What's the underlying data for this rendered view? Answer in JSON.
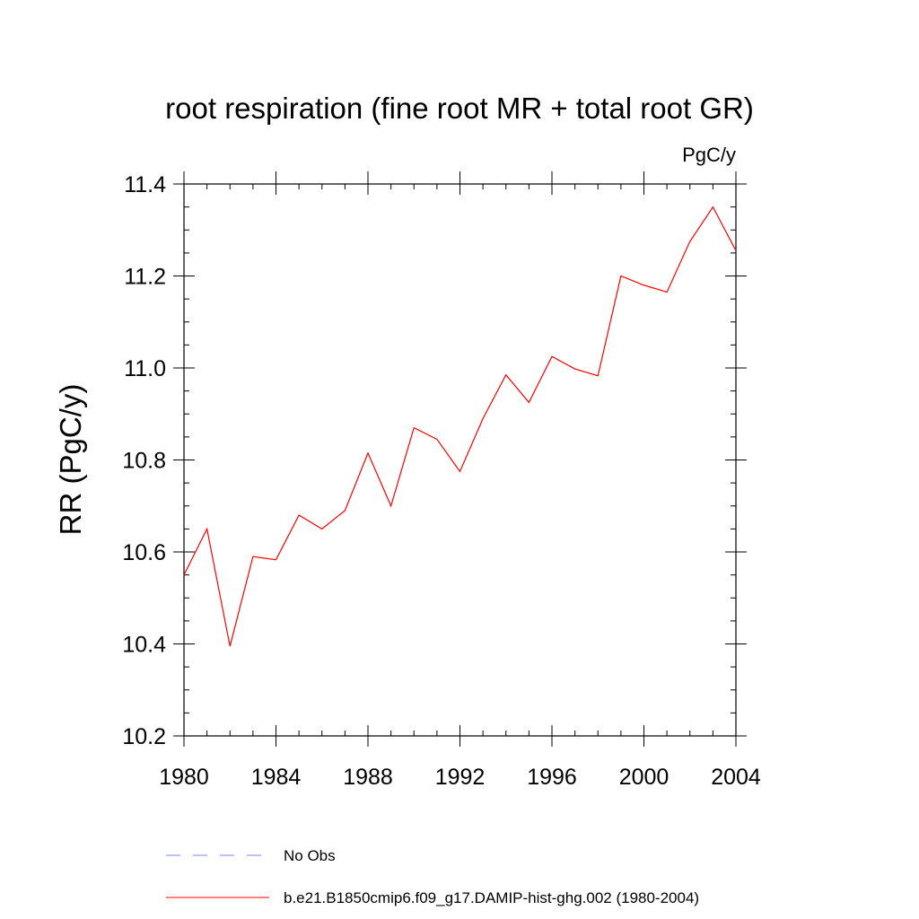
{
  "chart_data": {
    "type": "line",
    "title": "root respiration (fine root MR + total root GR)",
    "units_label": "PgC/y",
    "ylabel": "RR  (PgC/y)",
    "xlabel": "",
    "xlim": [
      1980,
      2004
    ],
    "ylim": [
      10.2,
      11.4
    ],
    "x_ticks": [
      1980,
      1984,
      1988,
      1992,
      1996,
      2000,
      2004
    ],
    "x_tick_labels": [
      "1980",
      "1984",
      "1988",
      "1992",
      "1996",
      "2000",
      "2004"
    ],
    "y_ticks": [
      10.2,
      10.4,
      10.6,
      10.8,
      11.0,
      11.2,
      11.4
    ],
    "y_tick_labels": [
      "10.2",
      "10.4",
      "10.6",
      "10.8",
      "11.0",
      "11.2",
      "11.4"
    ],
    "y_minor_step": 0.05,
    "x_minor_step": 1,
    "grid": false,
    "legend_position": "bottom",
    "legend": [
      {
        "label": "No Obs",
        "color": "#8080ff",
        "style": "dashed"
      },
      {
        "label": "b.e21.B1850cmip6.f09_g17.DAMIP-hist-ghg.002 (1980-2004)",
        "color": "#ff0000",
        "style": "solid"
      }
    ],
    "series": [
      {
        "name": "b.e21.B1850cmip6.f09_g17.DAMIP-hist-ghg.002 (1980-2004)",
        "color": "#ff0000",
        "x": [
          1980,
          1981,
          1982,
          1983,
          1984,
          1985,
          1986,
          1987,
          1988,
          1989,
          1990,
          1991,
          1992,
          1993,
          1994,
          1995,
          1996,
          1997,
          1998,
          1999,
          2000,
          2001,
          2002,
          2003,
          2004
        ],
        "values": [
          10.55,
          10.65,
          10.395,
          10.59,
          10.583,
          10.68,
          10.65,
          10.69,
          10.815,
          10.7,
          10.87,
          10.845,
          10.775,
          10.89,
          10.985,
          10.925,
          11.025,
          10.998,
          10.983,
          11.2,
          11.18,
          11.165,
          11.275,
          11.35,
          11.255
        ]
      }
    ]
  }
}
